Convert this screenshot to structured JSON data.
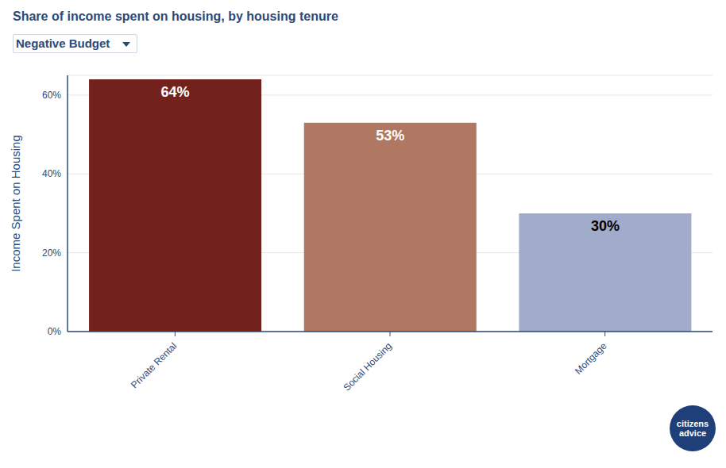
{
  "chart_data": {
    "type": "bar",
    "title": "Share of income spent on housing, by housing tenure",
    "dropdown": "Negative Budget",
    "y_label": "Income Spent on Housing",
    "logo": [
      "citizens",
      "advice"
    ],
    "categories": [
      "Private Rental",
      "Social Housing",
      "Mortgage"
    ],
    "values": [
      64,
      53,
      30
    ],
    "value_labels": [
      "64%",
      "53%",
      "30%"
    ],
    "colors": [
      "#73211c",
      "#b07862",
      "#a1abcb"
    ],
    "ylim": [
      0,
      65
    ],
    "yticks": [
      {
        "value": 0,
        "label": "0%"
      },
      {
        "value": 20,
        "label": "20%"
      },
      {
        "value": 40,
        "label": "40%"
      },
      {
        "value": 60,
        "label": "60%"
      }
    ],
    "grid": true,
    "data_labels": true
  }
}
